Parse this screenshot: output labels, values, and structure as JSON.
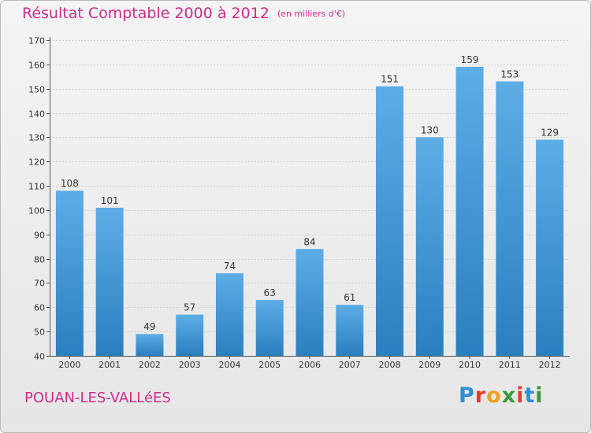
{
  "page": {
    "commune": "POUAN-LES-VALLéES",
    "logo_letters": [
      {
        "ch": "P",
        "color": "#2f8fd0"
      },
      {
        "ch": "r",
        "color": "#e63b2f"
      },
      {
        "ch": "o",
        "color": "#f2a01f"
      },
      {
        "ch": "x",
        "color": "#3b9a3b"
      },
      {
        "ch": "i",
        "color": "#e63b2f"
      },
      {
        "ch": "t",
        "color": "#2f8fd0"
      },
      {
        "ch": "i",
        "color": "#3b9a3b"
      }
    ]
  },
  "chart_data": {
    "type": "bar",
    "title": "Résultat Comptable 2000 à 2012",
    "subtitle": "(en milliers d'€)",
    "categories": [
      "2000",
      "2001",
      "2002",
      "2003",
      "2004",
      "2005",
      "2006",
      "2007",
      "2008",
      "2009",
      "2010",
      "2011",
      "2012"
    ],
    "values": [
      108,
      101,
      49,
      57,
      74,
      63,
      84,
      61,
      151,
      130,
      159,
      153,
      129
    ],
    "ylim": [
      40,
      170
    ],
    "yticks": [
      40,
      50,
      60,
      70,
      80,
      90,
      100,
      110,
      120,
      130,
      140,
      150,
      160,
      170
    ],
    "grid": true,
    "bar_color_top": "#5dade6",
    "bar_color_bottom": "#2a7fc0",
    "title_color": "#cc2d8e"
  }
}
